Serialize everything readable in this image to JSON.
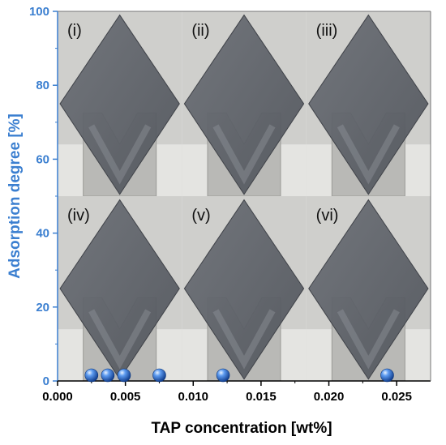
{
  "colors": {
    "y_axis": "#3b7fd0",
    "x_axis": "#000000",
    "marker": "#2f6fd6",
    "photo_bg": "#cfcfcc",
    "wafer": "#5d6168",
    "holder": "#b9b9b6"
  },
  "chart_data": {
    "type": "scatter",
    "xlabel": "TAP concentration [wt%]",
    "ylabel": "Adsorption degree [%]",
    "xlim": [
      0.0,
      0.0275
    ],
    "ylim": [
      0,
      100
    ],
    "x_ticks": [
      "0.000",
      "0.005",
      "0.010",
      "0.015",
      "0.020",
      "0.025"
    ],
    "y_ticks": [
      "0",
      "20",
      "40",
      "60",
      "80",
      "100"
    ],
    "grid": false,
    "series": [
      {
        "marker": "sphere",
        "points": [
          {
            "x": 0.0025,
            "y": 0
          },
          {
            "x": 0.0037,
            "y": 0
          },
          {
            "x": 0.0049,
            "y": 0
          },
          {
            "x": 0.0075,
            "y": 0
          },
          {
            "x": 0.0122,
            "y": 0
          },
          {
            "x": 0.0243,
            "y": 0
          }
        ]
      }
    ],
    "inset_images": {
      "layout": "3x2 photo grid",
      "panel_labels": [
        "(i)",
        "(ii)",
        "(iii)",
        "(iv)",
        "(v)",
        "(vi)"
      ]
    }
  }
}
